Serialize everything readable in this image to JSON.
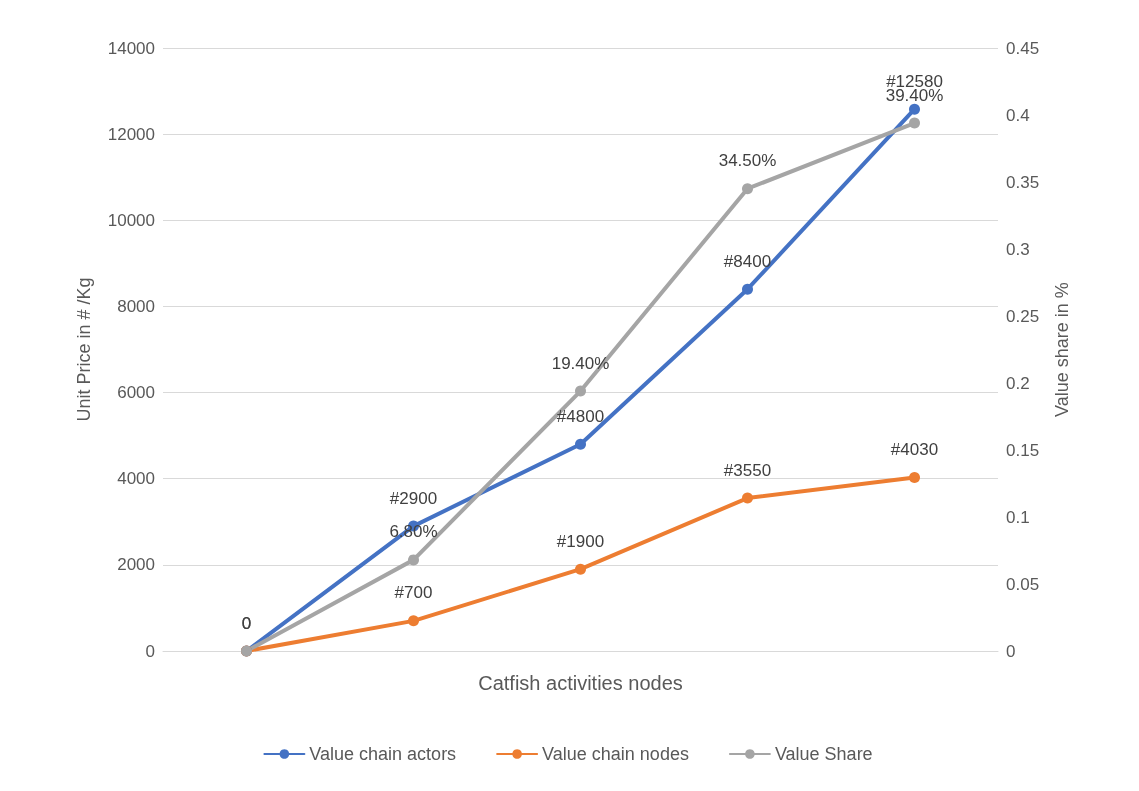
{
  "chart_data": {
    "type": "line",
    "categories": [
      null,
      null,
      null,
      null,
      null
    ],
    "xlabel": "Catfish activities nodes",
    "ylabel": "Unit Price in # /Kg",
    "y2label": "Value share in %",
    "ylim": [
      0,
      14000
    ],
    "yticks": [
      0,
      2000,
      4000,
      6000,
      8000,
      10000,
      12000,
      14000
    ],
    "y2lim": [
      0,
      0.45
    ],
    "y2ticks": [
      0,
      0.05,
      0.1,
      0.15,
      0.2,
      0.25,
      0.3,
      0.35,
      0.4,
      0.45
    ],
    "grid": "y",
    "legend": "bottom",
    "marker": "circle",
    "line_style": "solid",
    "series": [
      {
        "name": "Value chain actors",
        "color": "#4472c4",
        "values": [
          0,
          2900,
          4800,
          8400,
          12580
        ],
        "value_labels": [
          "0",
          "#2900",
          "#4800",
          "#8400",
          "#12580"
        ]
      },
      {
        "name": "Value chain nodes",
        "color": "#ed7d31",
        "values": [
          0,
          700,
          1900,
          3550,
          4030
        ],
        "value_labels": [
          "0",
          "#700",
          "#1900",
          "#3550",
          "#4030"
        ]
      },
      {
        "name": "Value Share",
        "color": "#a5a5a5",
        "axis": "y2",
        "values": [
          0,
          0.068,
          0.194,
          0.345,
          0.394
        ],
        "value_labels": [
          null,
          "6.80%",
          "19.40%",
          "34.50%",
          "39.40%"
        ]
      }
    ]
  }
}
